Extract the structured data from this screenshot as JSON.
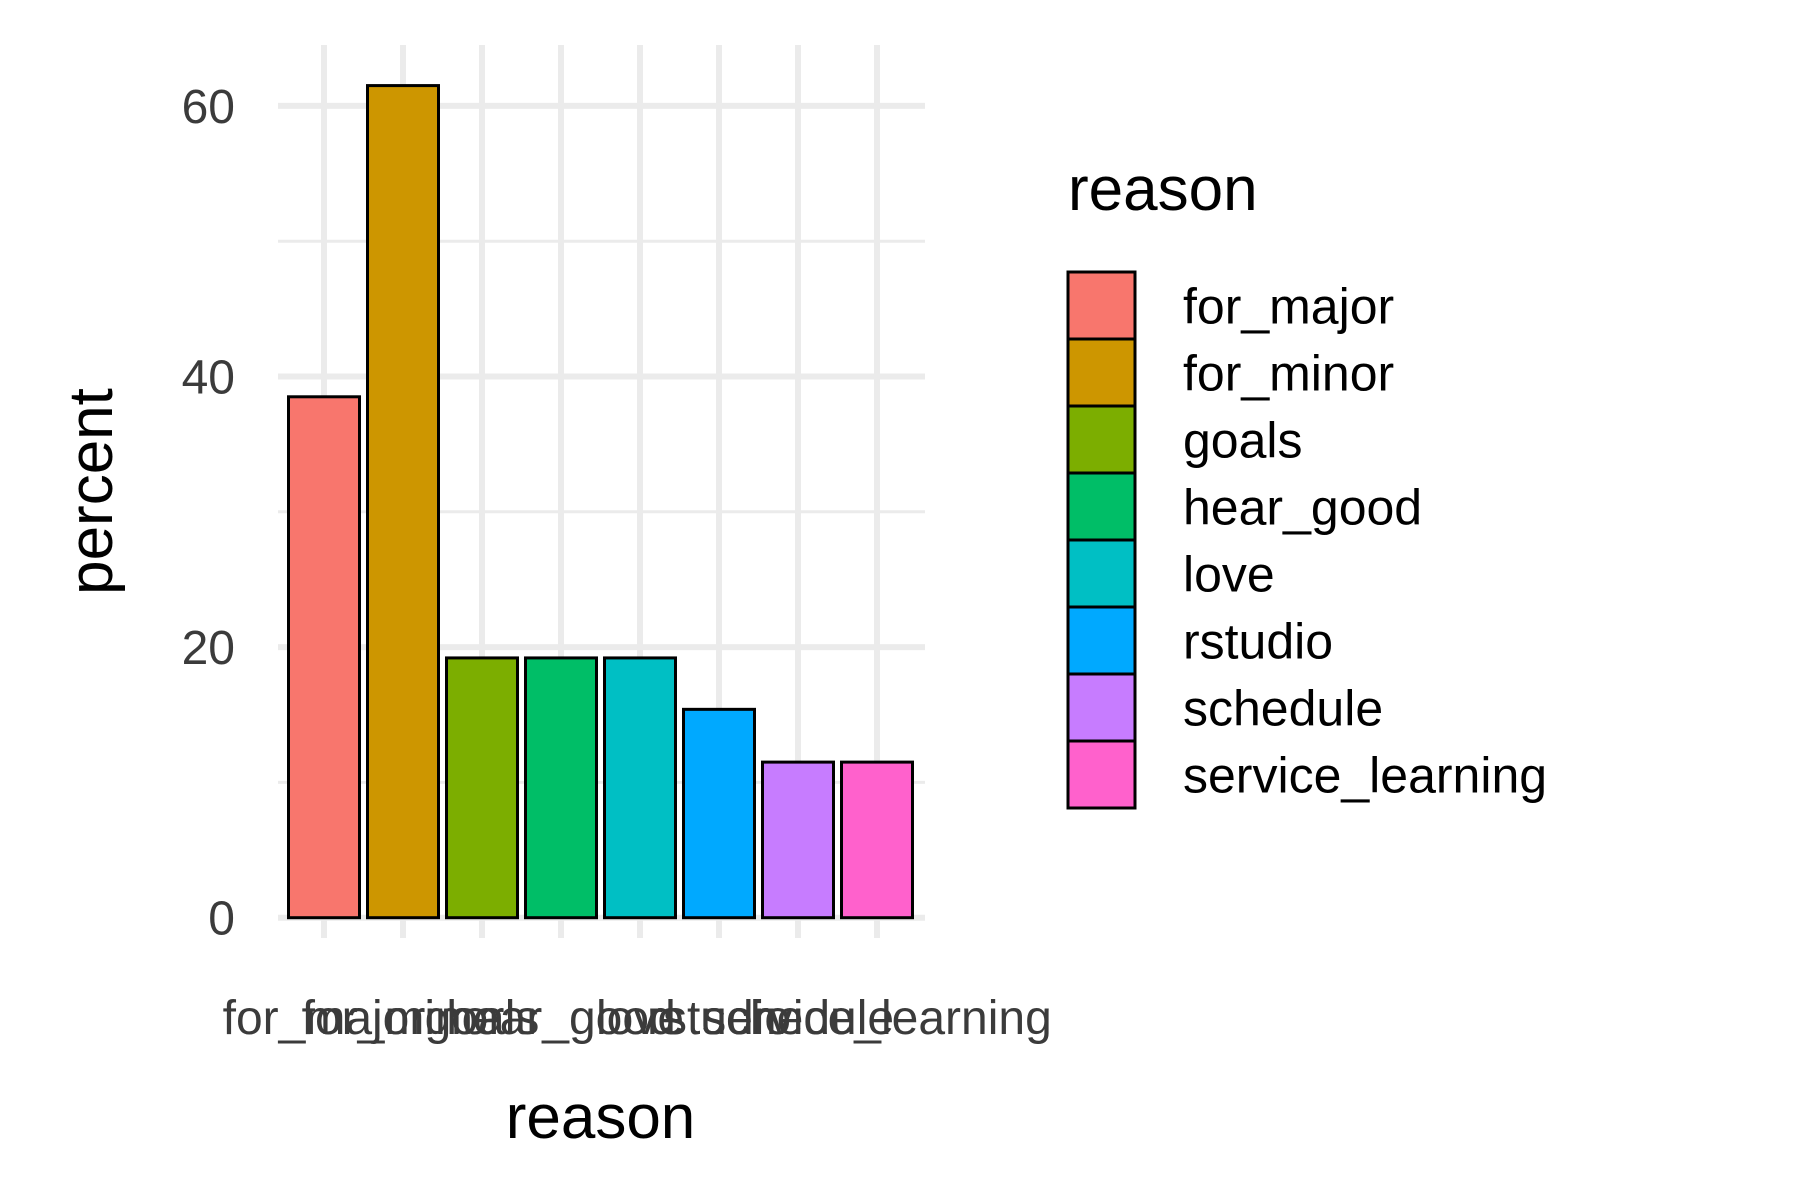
{
  "chart_data": {
    "type": "bar",
    "categories": [
      "for_major",
      "for_minor",
      "goals",
      "hear_good",
      "love",
      "rstudio",
      "schedule",
      "service_learning"
    ],
    "values": [
      38.5,
      61.5,
      19.2,
      19.2,
      19.2,
      15.4,
      11.5,
      11.5
    ],
    "colors": [
      "#F8766D",
      "#CD9600",
      "#7CAE00",
      "#00BE67",
      "#00BFC4",
      "#00A9FF",
      "#C77CFF",
      "#FF61CC"
    ],
    "xlabel": "reason",
    "ylabel": "percent",
    "ylim": [
      -1.5,
      64.5
    ],
    "yticks": [
      0,
      20,
      40,
      60
    ],
    "ytick_labels": [
      "0",
      "20",
      "40",
      "60"
    ],
    "grid": true,
    "legend": {
      "title": "reason",
      "placement": "right",
      "entries": [
        "for_major",
        "for_minor",
        "goals",
        "hear_good",
        "love",
        "rstudio",
        "schedule",
        "service_learning"
      ]
    }
  }
}
